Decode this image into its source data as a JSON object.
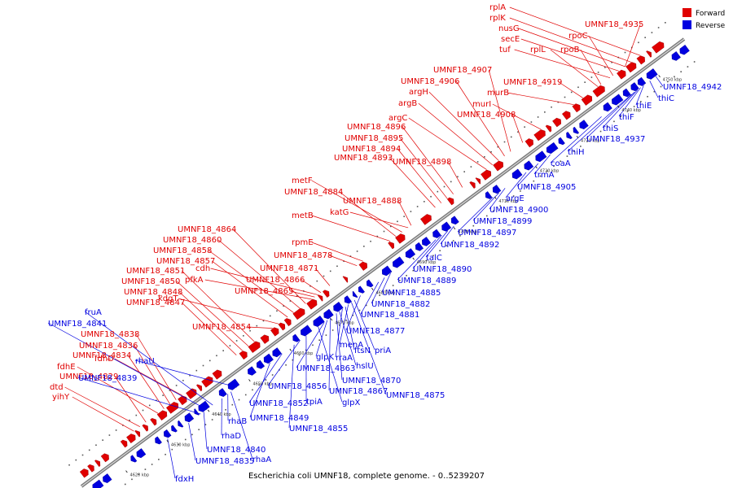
{
  "caption": "Escherichia coli UMNF18, complete genome. - 0..5239207",
  "legend": [
    {
      "label": "Forward",
      "color": "#e00000"
    },
    {
      "label": "Reverse",
      "color": "#0000e0"
    }
  ],
  "colors": {
    "forward": "#e00000",
    "reverse": "#0000e0",
    "axis": "#808080"
  },
  "ticks": [
    "4620 kbp",
    "4630 kbp",
    "4640 kbp",
    "4650 kbp",
    "4660 kbp",
    "4670 kbp",
    "4680 kbp",
    "4690 kbp",
    "4700 kbp",
    "4710 kbp",
    "4720 kbp",
    "4730 kbp",
    "4740 kbp",
    "4750 kbp"
  ],
  "forward_labels": [
    {
      "text": "rplA",
      "gene_t": 0.94
    },
    {
      "text": "rplK",
      "gene_t": 0.925
    },
    {
      "text": "nusG",
      "gene_t": 0.915
    },
    {
      "text": "secE",
      "gene_t": 0.905
    },
    {
      "text": "tuf",
      "gene_t": 0.89
    },
    {
      "text": "rplL",
      "gene_t": 0.87
    },
    {
      "text": "rpoB",
      "gene_t": 0.875
    },
    {
      "text": "UMNF18_4935",
      "gene_t": 0.915
    },
    {
      "text": "rpoC",
      "gene_t": 0.895
    },
    {
      "text": "UMNF18_4919",
      "gene_t": 0.845
    },
    {
      "text": "murB",
      "gene_t": 0.83
    },
    {
      "text": "murI",
      "gene_t": 0.775
    },
    {
      "text": "UMNF18_4907",
      "gene_t": 0.725
    },
    {
      "text": "UMNF18_4906",
      "gene_t": 0.715
    },
    {
      "text": "argH",
      "gene_t": 0.705
    },
    {
      "text": "argB",
      "gene_t": 0.695
    },
    {
      "text": "UMNF18_4908",
      "gene_t": 0.745
    },
    {
      "text": "argC",
      "gene_t": 0.685
    },
    {
      "text": "UMNF18_4896",
      "gene_t": 0.63
    },
    {
      "text": "UMNF18_4895",
      "gene_t": 0.62
    },
    {
      "text": "UMNF18_4894",
      "gene_t": 0.61
    },
    {
      "text": "UMNF18_4893",
      "gene_t": 0.6
    },
    {
      "text": "UMNF18_4898",
      "gene_t": 0.645
    },
    {
      "text": "metF",
      "gene_t": 0.545
    },
    {
      "text": "UMNF18_4884",
      "gene_t": 0.535
    },
    {
      "text": "UMNF18_4888",
      "gene_t": 0.56
    },
    {
      "text": "metB",
      "gene_t": 0.525
    },
    {
      "text": "katG",
      "gene_t": 0.555
    },
    {
      "text": "rpmE",
      "gene_t": 0.48
    },
    {
      "text": "UMNF18_4878",
      "gene_t": 0.47
    },
    {
      "text": "UMNF18_4864",
      "gene_t": 0.385
    },
    {
      "text": "UMNF18_4860",
      "gene_t": 0.375
    },
    {
      "text": "UMNF18_4858",
      "gene_t": 0.365
    },
    {
      "text": "UMNF18_4857",
      "gene_t": 0.355
    },
    {
      "text": "cdh",
      "gene_t": 0.405
    },
    {
      "text": "UMNF18_4871",
      "gene_t": 0.425
    },
    {
      "text": "pfkA",
      "gene_t": 0.395
    },
    {
      "text": "UMNF18_4866",
      "gene_t": 0.41
    },
    {
      "text": "UMNF18_4851",
      "gene_t": 0.3
    },
    {
      "text": "UMNF18_4865",
      "gene_t": 0.4
    },
    {
      "text": "UMNF18_4850",
      "gene_t": 0.29
    },
    {
      "text": "kdgT",
      "gene_t": 0.34
    },
    {
      "text": "UMNF18_4848",
      "gene_t": 0.28
    },
    {
      "text": "UMNF18_4847",
      "gene_t": 0.27
    },
    {
      "text": "UMNF18_4854",
      "gene_t": 0.33
    },
    {
      "text": "UMNF18_4838",
      "gene_t": 0.17
    },
    {
      "text": "fdhD",
      "gene_t": 0.18
    },
    {
      "text": "UMNF18_4836",
      "gene_t": 0.16
    },
    {
      "text": "UMNF18_4834",
      "gene_t": 0.15
    },
    {
      "text": "fdhE",
      "gene_t": 0.14
    },
    {
      "text": "UMNF18_4829",
      "gene_t": 0.12
    },
    {
      "text": "dtd",
      "gene_t": 0.11
    },
    {
      "text": "yihY",
      "gene_t": 0.1
    }
  ],
  "reverse_labels": [
    {
      "text": "UMNF18_4942",
      "gene_t": 0.94
    },
    {
      "text": "thiC",
      "gene_t": 0.93
    },
    {
      "text": "thiE",
      "gene_t": 0.92
    },
    {
      "text": "thiF",
      "gene_t": 0.915
    },
    {
      "text": "thiS",
      "gene_t": 0.91
    },
    {
      "text": "UMNF18_4937",
      "gene_t": 0.905
    },
    {
      "text": "thiH",
      "gene_t": 0.9
    },
    {
      "text": "coaA",
      "gene_t": 0.85
    },
    {
      "text": "trmA",
      "gene_t": 0.765
    },
    {
      "text": "UMNF18_4905",
      "gene_t": 0.745
    },
    {
      "text": "argE",
      "gene_t": 0.725
    },
    {
      "text": "UMNF18_4900",
      "gene_t": 0.69
    },
    {
      "text": "UMNF18_4899",
      "gene_t": 0.68
    },
    {
      "text": "UMNF18_4897",
      "gene_t": 0.67
    },
    {
      "text": "UMNF18_4892",
      "gene_t": 0.605
    },
    {
      "text": "talC",
      "gene_t": 0.595
    },
    {
      "text": "UMNF18_4890",
      "gene_t": 0.585
    },
    {
      "text": "UMNF18_4889",
      "gene_t": 0.575
    },
    {
      "text": "UMNF18_4885",
      "gene_t": 0.5
    },
    {
      "text": "UMNF18_4882",
      "gene_t": 0.49
    },
    {
      "text": "UMNF18_4881",
      "gene_t": 0.48
    },
    {
      "text": "UMNF18_4877",
      "gene_t": 0.45
    },
    {
      "text": "menA",
      "gene_t": 0.43
    },
    {
      "text": "ftsN",
      "gene_t": 0.425
    },
    {
      "text": "priA",
      "gene_t": 0.44
    },
    {
      "text": "rraA",
      "gene_t": 0.42
    },
    {
      "text": "hslU",
      "gene_t": 0.415
    },
    {
      "text": "glpK",
      "gene_t": 0.395
    },
    {
      "text": "UMNF18_4863",
      "gene_t": 0.39
    },
    {
      "text": "UMNF18_4870",
      "gene_t": 0.41
    },
    {
      "text": "UMNF18_4867",
      "gene_t": 0.4
    },
    {
      "text": "UMNF18_4875",
      "gene_t": 0.435
    },
    {
      "text": "UMNF18_4856",
      "gene_t": 0.35
    },
    {
      "text": "tpiA",
      "gene_t": 0.36
    },
    {
      "text": "glpX",
      "gene_t": 0.38
    },
    {
      "text": "UMNF18_4852",
      "gene_t": 0.32
    },
    {
      "text": "UMNF18_4849",
      "gene_t": 0.3
    },
    {
      "text": "UMNF18_4855",
      "gene_t": 0.34
    },
    {
      "text": "fruA",
      "gene_t": 0.205
    },
    {
      "text": "UMNF18_4841",
      "gene_t": 0.195
    },
    {
      "text": "rhaU",
      "gene_t": 0.245
    },
    {
      "text": "UMNF18_4839",
      "gene_t": 0.185
    },
    {
      "text": "rhaB",
      "gene_t": 0.23
    },
    {
      "text": "rhaD",
      "gene_t": 0.22
    },
    {
      "text": "UMNF18_4840",
      "gene_t": 0.19
    },
    {
      "text": "rhaA",
      "gene_t": 0.235
    },
    {
      "text": "UMNF18_4835",
      "gene_t": 0.165
    },
    {
      "text": "fdxH",
      "gene_t": 0.13
    }
  ]
}
